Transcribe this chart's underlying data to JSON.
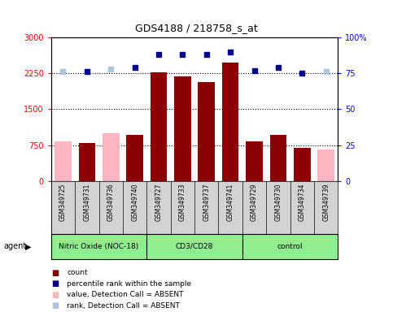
{
  "title": "GDS4188 / 218758_s_at",
  "samples": [
    "GSM349725",
    "GSM349731",
    "GSM349736",
    "GSM349740",
    "GSM349727",
    "GSM349733",
    "GSM349737",
    "GSM349741",
    "GSM349729",
    "GSM349730",
    "GSM349734",
    "GSM349739"
  ],
  "bar_values": [
    830,
    800,
    1000,
    970,
    2270,
    2190,
    2060,
    2480,
    830,
    970,
    690,
    650
  ],
  "bar_absent": [
    true,
    false,
    true,
    false,
    false,
    false,
    false,
    false,
    false,
    false,
    false,
    true
  ],
  "percentile_values": [
    76,
    76,
    78,
    79,
    88,
    88,
    88,
    90,
    77,
    79,
    75,
    76
  ],
  "percentile_absent": [
    true,
    false,
    true,
    false,
    false,
    false,
    false,
    false,
    false,
    false,
    false,
    true
  ],
  "groups": [
    {
      "label": "Nitric Oxide (NOC-18)",
      "start": 0,
      "end": 4
    },
    {
      "label": "CD3/CD28",
      "start": 4,
      "end": 8
    },
    {
      "label": "control",
      "start": 8,
      "end": 12
    }
  ],
  "group_boundaries": [
    0,
    4,
    8,
    12
  ],
  "left_ylim": [
    0,
    3000
  ],
  "right_ylim": [
    0,
    100
  ],
  "left_yticks": [
    0,
    750,
    1500,
    2250,
    3000
  ],
  "right_yticks": [
    0,
    25,
    50,
    75,
    100
  ],
  "left_yticklabels": [
    "0",
    "750",
    "1500",
    "2250",
    "3000"
  ],
  "right_yticklabels": [
    "0",
    "25",
    "50",
    "75",
    "100%"
  ],
  "bar_color_present": "#8B0000",
  "bar_color_absent": "#FFB6C1",
  "dot_color_present": "#00008B",
  "dot_color_absent": "#B0C4DE",
  "plot_bg": "#FFFFFF",
  "sample_bg": "#D3D3D3",
  "group_bg": "#90EE90",
  "agent_label": "agent",
  "legend_items": [
    {
      "color": "#8B0000",
      "label": "count"
    },
    {
      "color": "#00008B",
      "label": "percentile rank within the sample"
    },
    {
      "color": "#FFB6C1",
      "label": "value, Detection Call = ABSENT"
    },
    {
      "color": "#B0C4DE",
      "label": "rank, Detection Call = ABSENT"
    }
  ]
}
